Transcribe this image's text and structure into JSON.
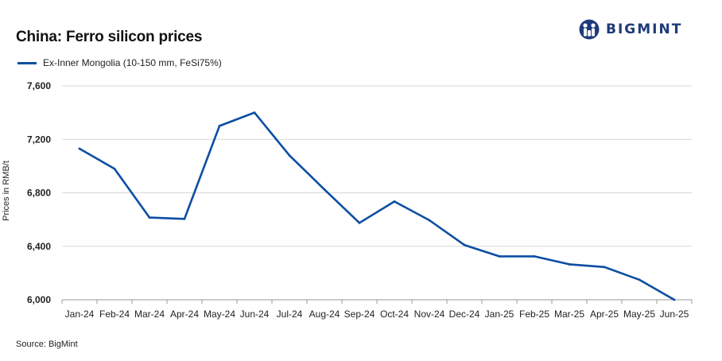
{
  "chart_data": {
    "type": "line",
    "title": "China: Ferro silicon prices",
    "ylabel": "Prices in RMB/t",
    "xlabel": "",
    "ylim": [
      6000,
      7600
    ],
    "yticks": [
      6000,
      6400,
      6800,
      7200,
      7600
    ],
    "ytick_labels": [
      "6,000",
      "6,400",
      "6,800",
      "7,200",
      "7,600"
    ],
    "categories": [
      "Jan-24",
      "Feb-24",
      "Mar-24",
      "Apr-24",
      "May-24",
      "Jun-24",
      "Jul-24",
      "Aug-24",
      "Sep-24",
      "Oct-24",
      "Nov-24",
      "Dec-24",
      "Jan-25",
      "Feb-25",
      "Mar-25",
      "Apr-25",
      "May-25",
      "Jun-25"
    ],
    "series": [
      {
        "name": "Ex-Inner Mongolia (10-150 mm, FeSi75%)",
        "color": "#0b4ea2",
        "values": [
          7130,
          6980,
          6615,
          6605,
          7300,
          7400,
          7080,
          6825,
          6575,
          6735,
          6595,
          6410,
          6325,
          6325,
          6265,
          6245,
          6150,
          5990
        ]
      }
    ],
    "grid": true,
    "legend_position": "top-left",
    "source": "Source:  BigMint"
  },
  "brand": {
    "name": "BIGMINT",
    "color": "#1f3a7a"
  }
}
